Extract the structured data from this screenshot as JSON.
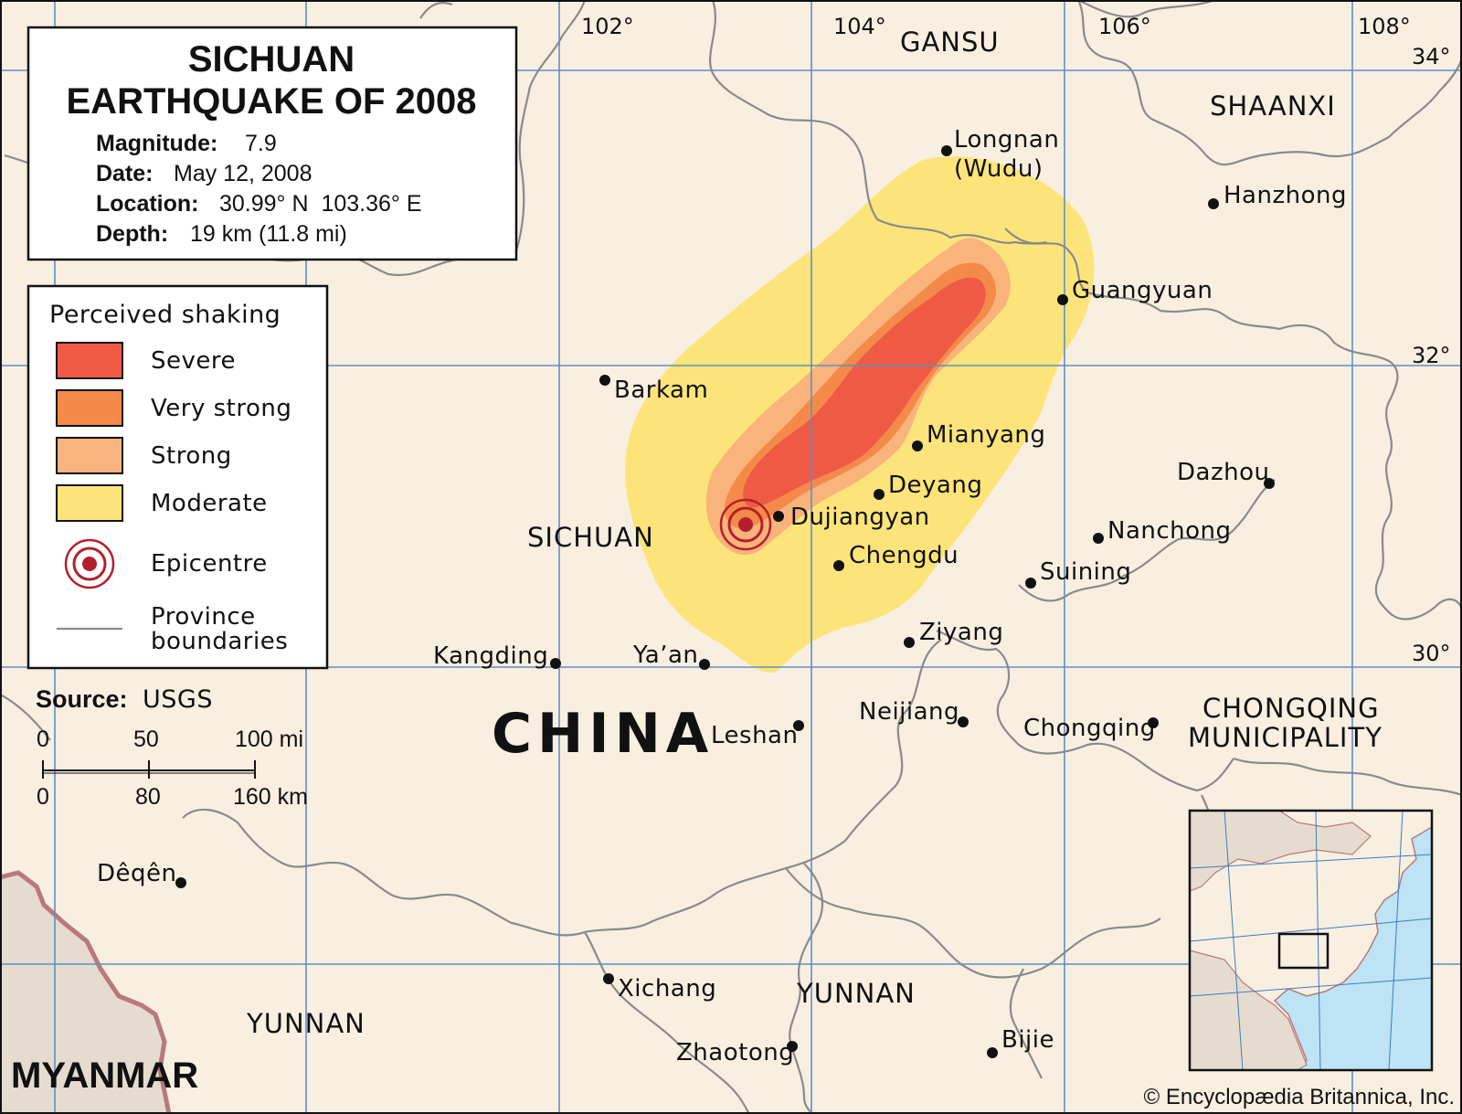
{
  "title": {
    "line1": "SICHUAN",
    "line2": "EARTHQUAKE OF 2008"
  },
  "info": [
    {
      "label": "Magnitude:",
      "value": "7.9"
    },
    {
      "label": "Date:",
      "value": "May 12, 2008"
    },
    {
      "label": "Location:",
      "value": "30.99° N  103.36° E"
    },
    {
      "label": "Depth:",
      "value": "19 km (11.8 mi)"
    }
  ],
  "legend": {
    "title": "Perceived shaking",
    "items": [
      {
        "label": "Severe",
        "color": "#ef5a45"
      },
      {
        "label": "Very strong",
        "color": "#f48a4a"
      },
      {
        "label": "Strong",
        "color": "#f9b37b"
      },
      {
        "label": "Moderate",
        "color": "#fde47a"
      }
    ],
    "epicentre": {
      "label": "Epicentre",
      "color": "#b3202b"
    },
    "boundary_line1": "Province",
    "boundary_line2": "boundaries"
  },
  "source": {
    "label": "Source:",
    "value": "USGS"
  },
  "scale": {
    "mi": [
      "0",
      "50",
      "100 mi"
    ],
    "km": [
      "0",
      "80",
      "160 km"
    ]
  },
  "longitudes": [
    "102°",
    "104°",
    "106°",
    "108°"
  ],
  "latitudes": [
    "34°",
    "32°",
    "30°"
  ],
  "regions": {
    "gansu": "GANSU",
    "shaanxi": "SHAANXI",
    "sichuan": "SICHUAN",
    "china": "CHINA",
    "chongqing1": "CHONGQING",
    "chongqing2": "MUNICIPALITY",
    "yunnan_east": "YUNNAN",
    "yunnan_west": "YUNNAN",
    "myanmar": "MYANMAR"
  },
  "cities": {
    "longnan1": "Longnan",
    "longnan2": "(Wudu)",
    "hanzhong": "Hanzhong",
    "guangyuan": "Guangyuan",
    "barkam": "Barkam",
    "mianyang": "Mianyang",
    "deyang": "Deyang",
    "dujiangyan": "Dujiangyan",
    "chengdu": "Chengdu",
    "dazhou": "Dazhou",
    "nanchong": "Nanchong",
    "suining": "Suining",
    "ziyang": "Ziyang",
    "kangding": "Kangding",
    "yaan": "Ya’an",
    "leshan": "Leshan",
    "neijiang": "Neijiang",
    "chongqing": "Chongqing",
    "deqen": "Dêqên",
    "xichang": "Xichang",
    "zhaotong": "Zhaotong",
    "bijie": "Bijie"
  },
  "copyright": "© Encyclopædia Britannica, Inc.",
  "colors": {
    "land": "#f8efe1",
    "grid": "#5f8fc7",
    "boundary": "#8a8a8a",
    "myanmar": "#e5dccf",
    "border_intl": "#b9797a",
    "sea": "#bde3f5"
  }
}
